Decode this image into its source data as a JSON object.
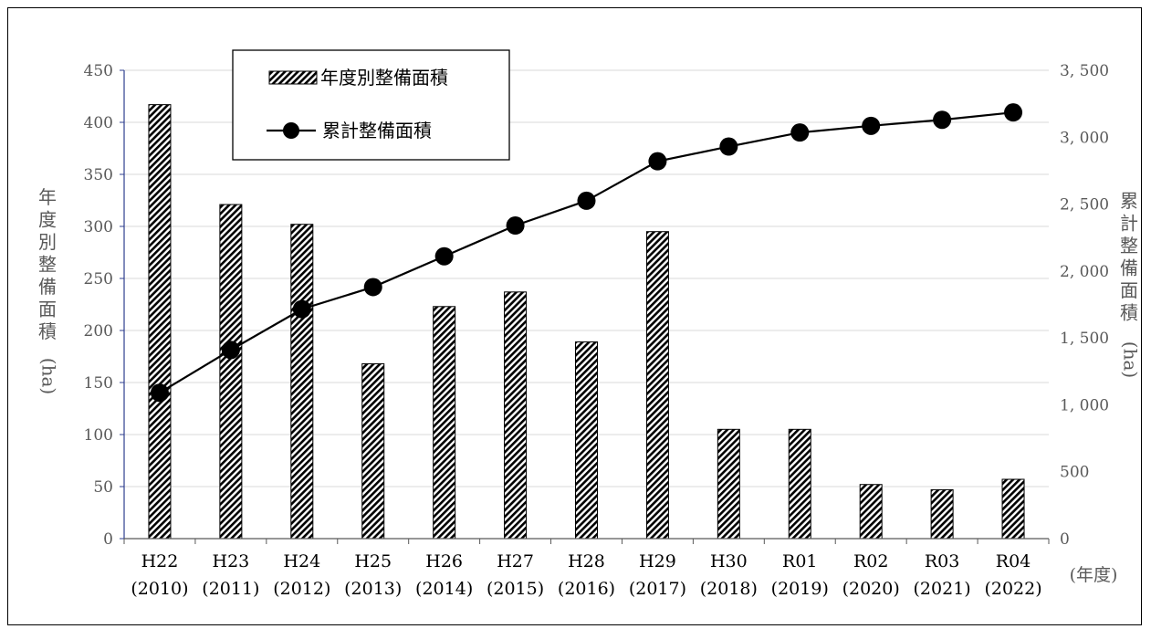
{
  "chart_data": {
    "type": "bar",
    "categories": [
      [
        "H22",
        "(2010)"
      ],
      [
        "H23",
        "(2011)"
      ],
      [
        "H24",
        "(2012)"
      ],
      [
        "H25",
        "(2013)"
      ],
      [
        "H26",
        "(2014)"
      ],
      [
        "H27",
        "(2015)"
      ],
      [
        "H28",
        "(2016)"
      ],
      [
        "H29",
        "(2017)"
      ],
      [
        "H30",
        "(2018)"
      ],
      [
        "R01",
        "(2019)"
      ],
      [
        "R02",
        "(2020)"
      ],
      [
        "R03",
        "(2021)"
      ],
      [
        "R04",
        "(2022)"
      ]
    ],
    "series": [
      {
        "name": "年度別整備面積",
        "type": "bar",
        "axis": "left",
        "values": [
          417,
          321,
          302,
          168,
          223,
          237,
          189,
          295,
          105,
          105,
          52,
          47,
          57
        ]
      },
      {
        "name": "累計整備面積",
        "type": "line",
        "axis": "right",
        "values": [
          1090,
          1410,
          1715,
          1880,
          2110,
          2340,
          2525,
          2820,
          2930,
          3035,
          3085,
          3130,
          3185
        ]
      }
    ],
    "ylabel_left": [
      "年",
      "度",
      "別",
      "整",
      "備",
      "面",
      "積",
      "(ha)"
    ],
    "ylabel_right": [
      "累",
      "計",
      "整",
      "備",
      "面",
      "積",
      "(ha)"
    ],
    "xlabel": "(年度)",
    "ylim_left": [
      0,
      450
    ],
    "ylim_right": [
      0,
      3500
    ],
    "yticks_left": [
      "0",
      "50",
      "100",
      "150",
      "200",
      "250",
      "300",
      "350",
      "400",
      "450"
    ],
    "yticks_right": [
      "0",
      "500",
      "1, 000",
      "1, 500",
      "2, 000",
      "2, 500",
      "3, 000",
      "3, 500"
    ],
    "grid": true,
    "legend_position": "top-left"
  }
}
